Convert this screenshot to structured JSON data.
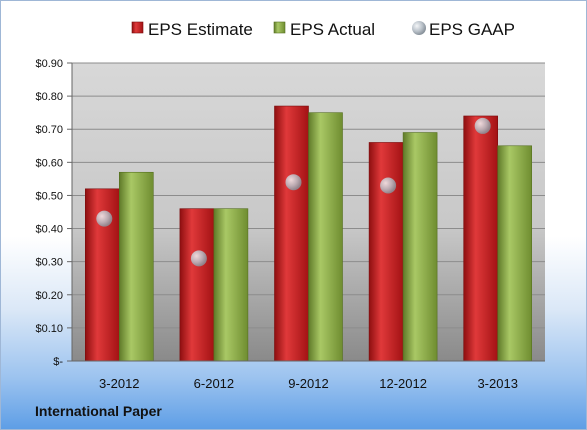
{
  "company": "International Paper",
  "chart_data": {
    "type": "bar",
    "categories": [
      "3-2012",
      "6-2012",
      "9-2012",
      "12-2012",
      "3-2013"
    ],
    "series": [
      {
        "name": "EPS Estimate",
        "type": "bar",
        "color": "#c9191b",
        "values": [
          0.52,
          0.46,
          0.77,
          0.66,
          0.74
        ]
      },
      {
        "name": "EPS Actual",
        "type": "bar",
        "color": "#8fb143",
        "values": [
          0.57,
          0.46,
          0.75,
          0.69,
          0.65
        ]
      },
      {
        "name": "EPS GAAP",
        "type": "scatter",
        "color": "#b9c1c9",
        "values": [
          0.43,
          0.31,
          0.54,
          0.53,
          0.71
        ]
      }
    ],
    "ylim": [
      0,
      0.9
    ],
    "yticks": [
      0,
      0.1,
      0.2,
      0.3,
      0.4,
      0.5,
      0.6,
      0.7,
      0.8,
      0.9
    ],
    "ytick_labels": [
      "$-",
      "$0.10",
      "$0.20",
      "$0.30",
      "$0.40",
      "$0.50",
      "$0.60",
      "$0.70",
      "$0.80",
      "$0.90"
    ],
    "legend_position": "top",
    "grid": true
  }
}
